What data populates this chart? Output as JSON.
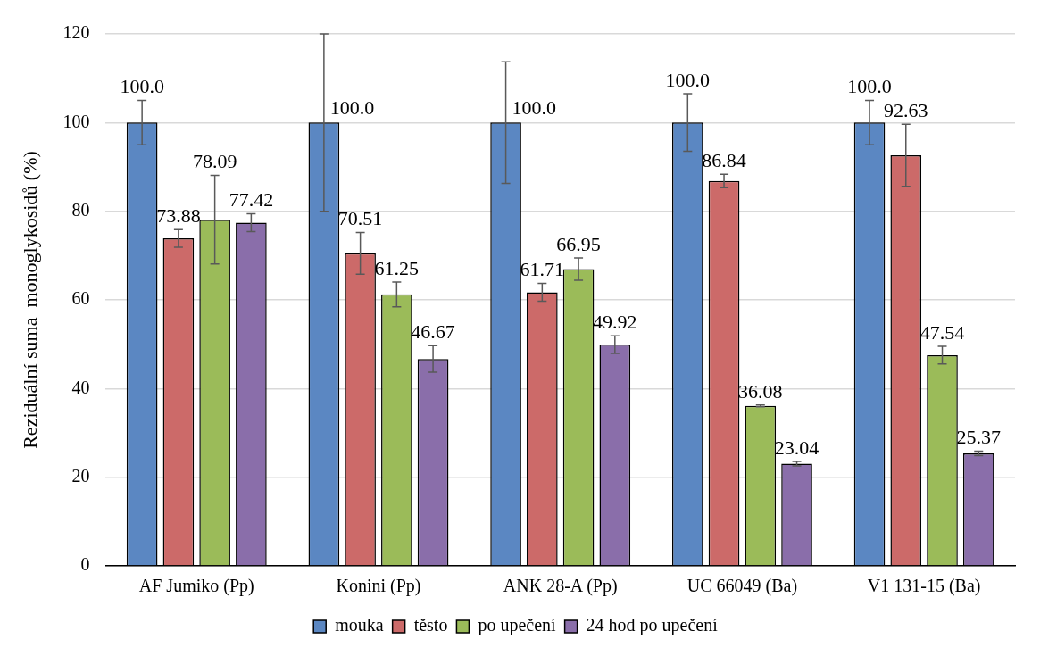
{
  "chart_data": {
    "type": "bar",
    "ylabel": "Reziduální suma  monoglykosidů (%)",
    "categories": [
      "AF Jumiko (Pp)",
      "Konini (Pp)",
      "ANK 28-A (Pp)",
      "UC 66049 (Ba)",
      "V1 131-15 (Ba)"
    ],
    "series": [
      {
        "name": "mouka",
        "color": "#5b87c2",
        "values": [
          100,
          100,
          100,
          100,
          100
        ],
        "errors": [
          5,
          20,
          13.7,
          6.5,
          5
        ],
        "value_labels": [
          "100.0",
          "100.0",
          "100.0",
          "100.0",
          "100.0"
        ]
      },
      {
        "name": "těsto",
        "color": "#cc6a69",
        "values": [
          73.88,
          70.51,
          61.71,
          86.84,
          92.63
        ],
        "errors": [
          2,
          4.7,
          2,
          1.5,
          7
        ],
        "value_labels": [
          "73.88",
          "70.51",
          "61.71",
          "86.84",
          "92.63"
        ]
      },
      {
        "name": "po upečení",
        "color": "#9bbb59",
        "values": [
          78.09,
          61.25,
          66.95,
          36.08,
          47.54
        ],
        "errors": [
          10,
          2.8,
          2.5,
          0.2,
          2
        ],
        "value_labels": [
          "78.09",
          "61.25",
          "66.95",
          "36.08",
          "47.54"
        ]
      },
      {
        "name": "24 hod po upečení",
        "color": "#8a6eaa",
        "values": [
          77.42,
          46.67,
          49.92,
          23.04,
          25.37
        ],
        "errors": [
          2,
          3,
          2,
          0.5,
          0.5
        ],
        "value_labels": [
          "77.42",
          "46.67",
          "49.92",
          "23.04",
          "25.37"
        ]
      }
    ],
    "ylim": [
      0,
      120
    ],
    "yticks": [
      0,
      20,
      40,
      60,
      80,
      100,
      120
    ],
    "grid": "y",
    "legend": "bottom"
  }
}
